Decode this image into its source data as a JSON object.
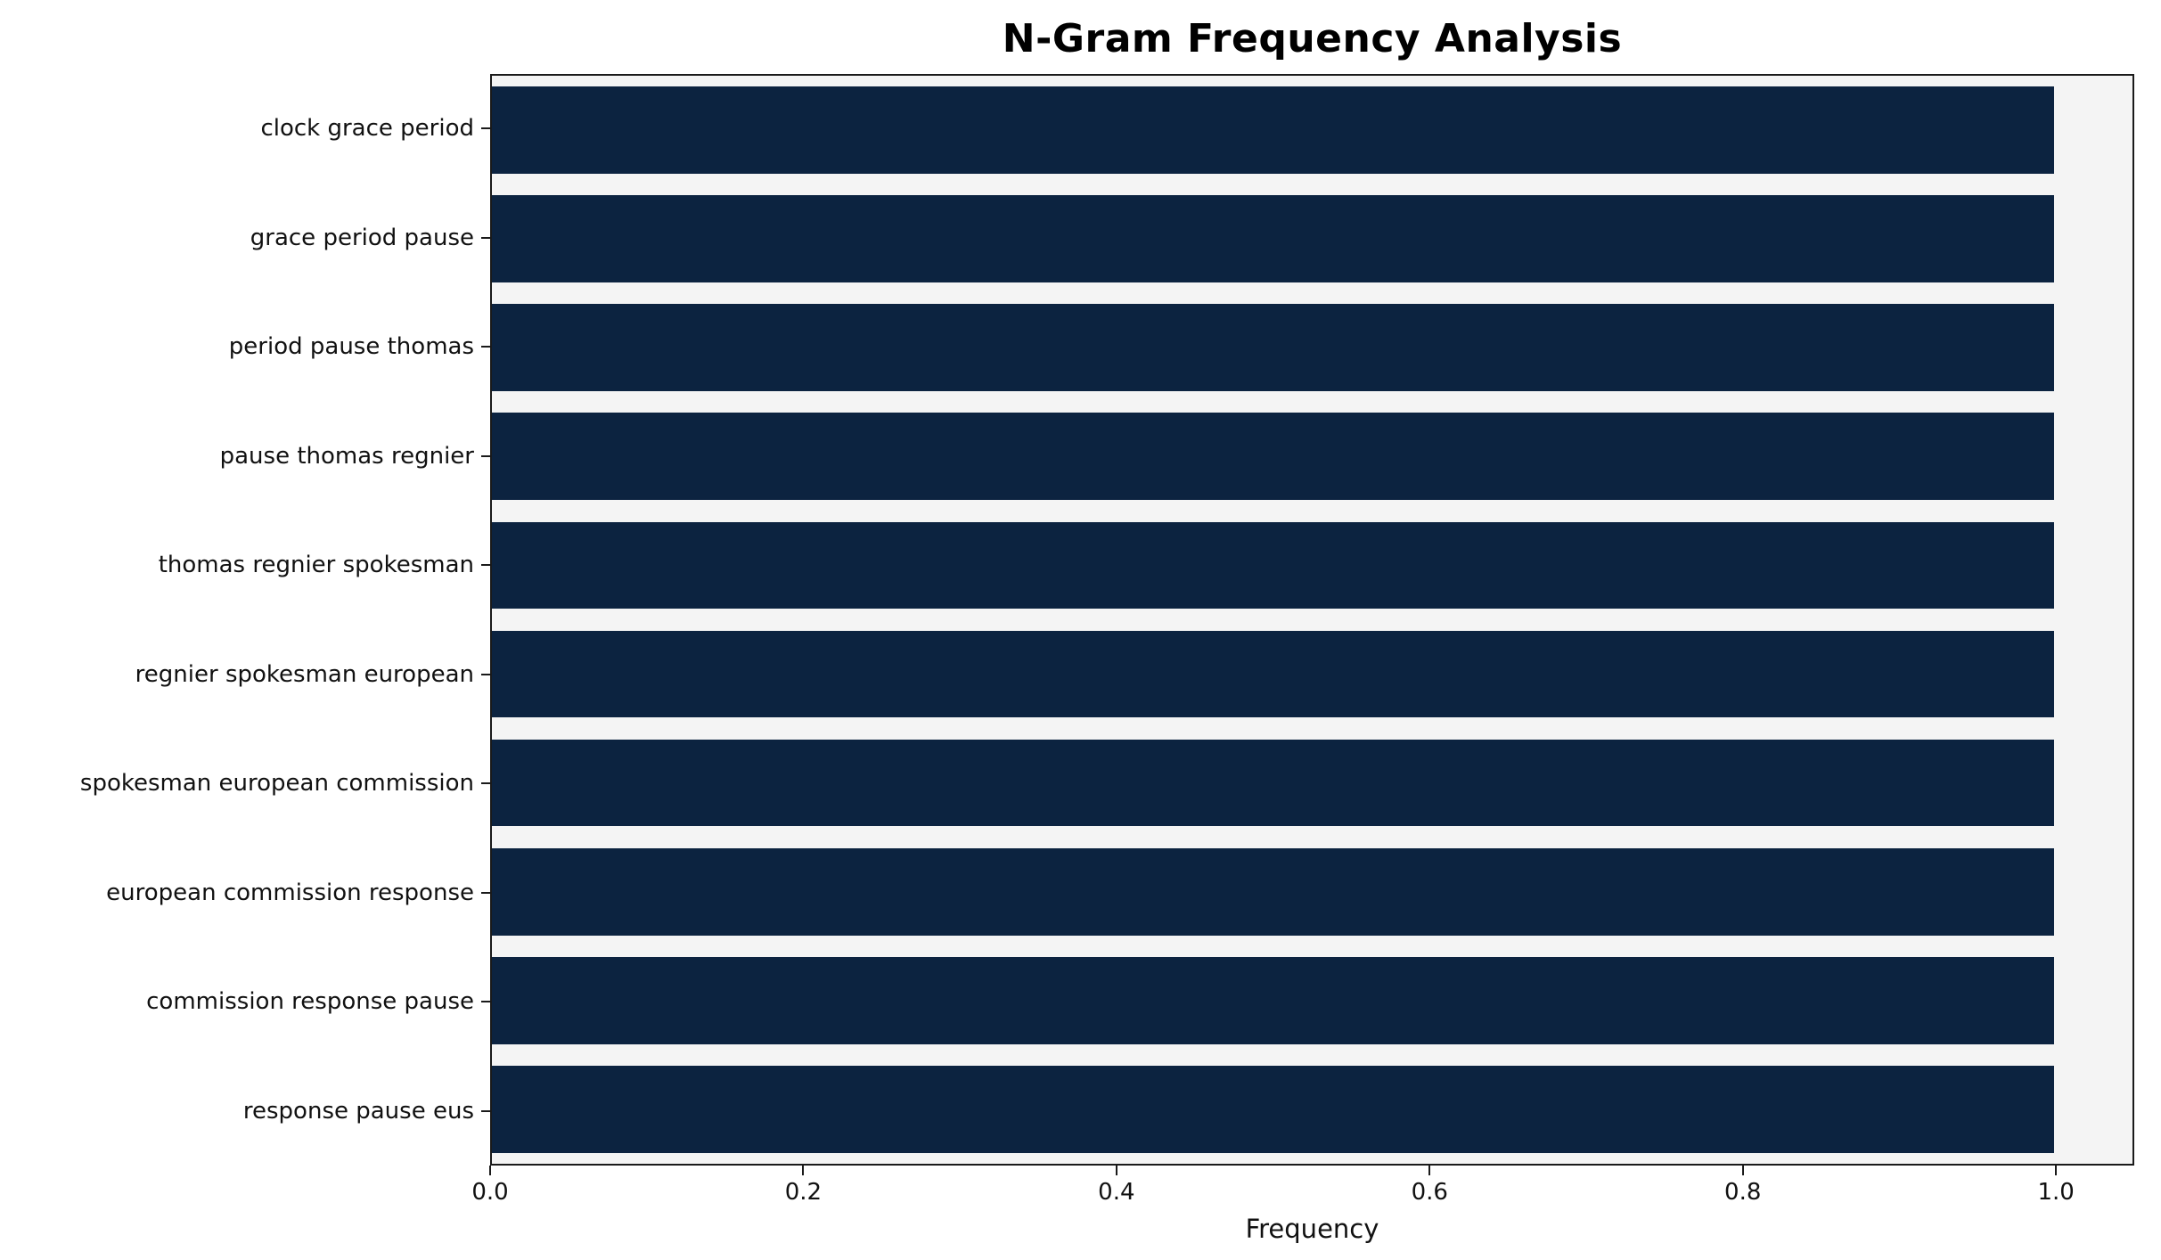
{
  "chart_data": {
    "type": "bar",
    "orientation": "horizontal",
    "title": "N-Gram Frequency Analysis",
    "xlabel": "Frequency",
    "ylabel": "",
    "categories": [
      "clock grace period",
      "grace period pause",
      "period pause thomas",
      "pause thomas regnier",
      "thomas regnier spokesman",
      "regnier spokesman european",
      "spokesman european commission",
      "european commission response",
      "commission response pause",
      "response pause eus"
    ],
    "values": [
      1.0,
      1.0,
      1.0,
      1.0,
      1.0,
      1.0,
      1.0,
      1.0,
      1.0,
      1.0
    ],
    "xlim": [
      0,
      1.05
    ],
    "x_ticks": [
      0.0,
      0.2,
      0.4,
      0.6,
      0.8,
      1.0
    ],
    "x_tick_labels": [
      "0.0",
      "0.2",
      "0.4",
      "0.6",
      "0.8",
      "1.0"
    ],
    "bar_color": "#0c2340",
    "plot_bg": "#f4f4f4",
    "grid": false,
    "legend": null
  }
}
